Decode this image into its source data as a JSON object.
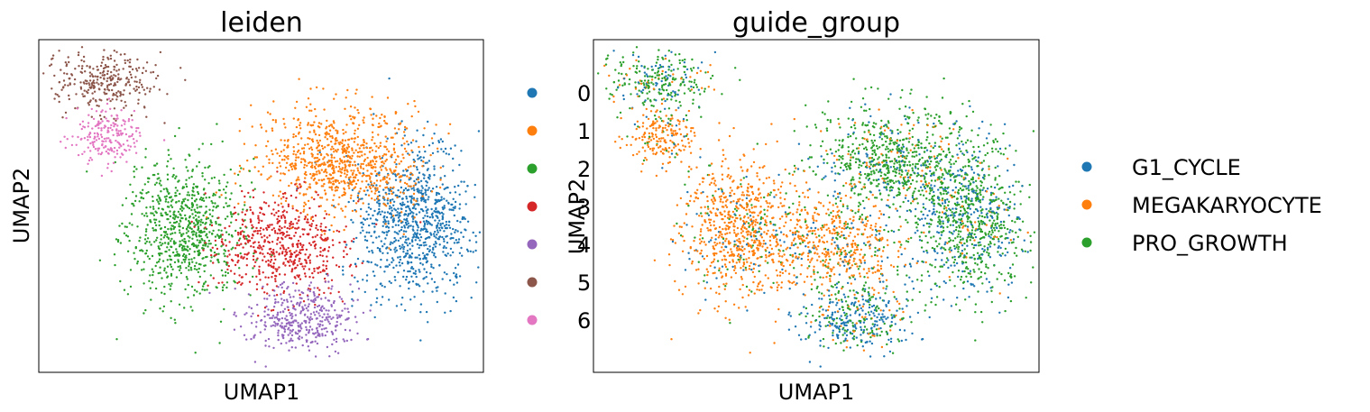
{
  "chart_data": [
    {
      "type": "scatter",
      "title": "leiden",
      "xlabel": "UMAP1",
      "ylabel": "UMAP2",
      "grid": false,
      "ticks": false,
      "legend_placement": "right",
      "legend": [
        {
          "name": "0",
          "color": "#1f77b4"
        },
        {
          "name": "1",
          "color": "#ff7f0e"
        },
        {
          "name": "2",
          "color": "#2ca02c"
        },
        {
          "name": "3",
          "color": "#d62728"
        },
        {
          "name": "4",
          "color": "#9467bd"
        },
        {
          "name": "5",
          "color": "#8c564b"
        },
        {
          "name": "6",
          "color": "#e377c2"
        }
      ]
    },
    {
      "type": "scatter",
      "title": "guide_group",
      "xlabel": "UMAP1",
      "ylabel": "UMAP2",
      "grid": false,
      "ticks": false,
      "legend_placement": "right",
      "legend": [
        {
          "name": "G1_CYCLE",
          "color": "#1f77b4"
        },
        {
          "name": "MEGAKARYOCYTE",
          "color": "#ff7f0e"
        },
        {
          "name": "PRO_GROWTH",
          "color": "#2ca02c"
        }
      ]
    }
  ]
}
